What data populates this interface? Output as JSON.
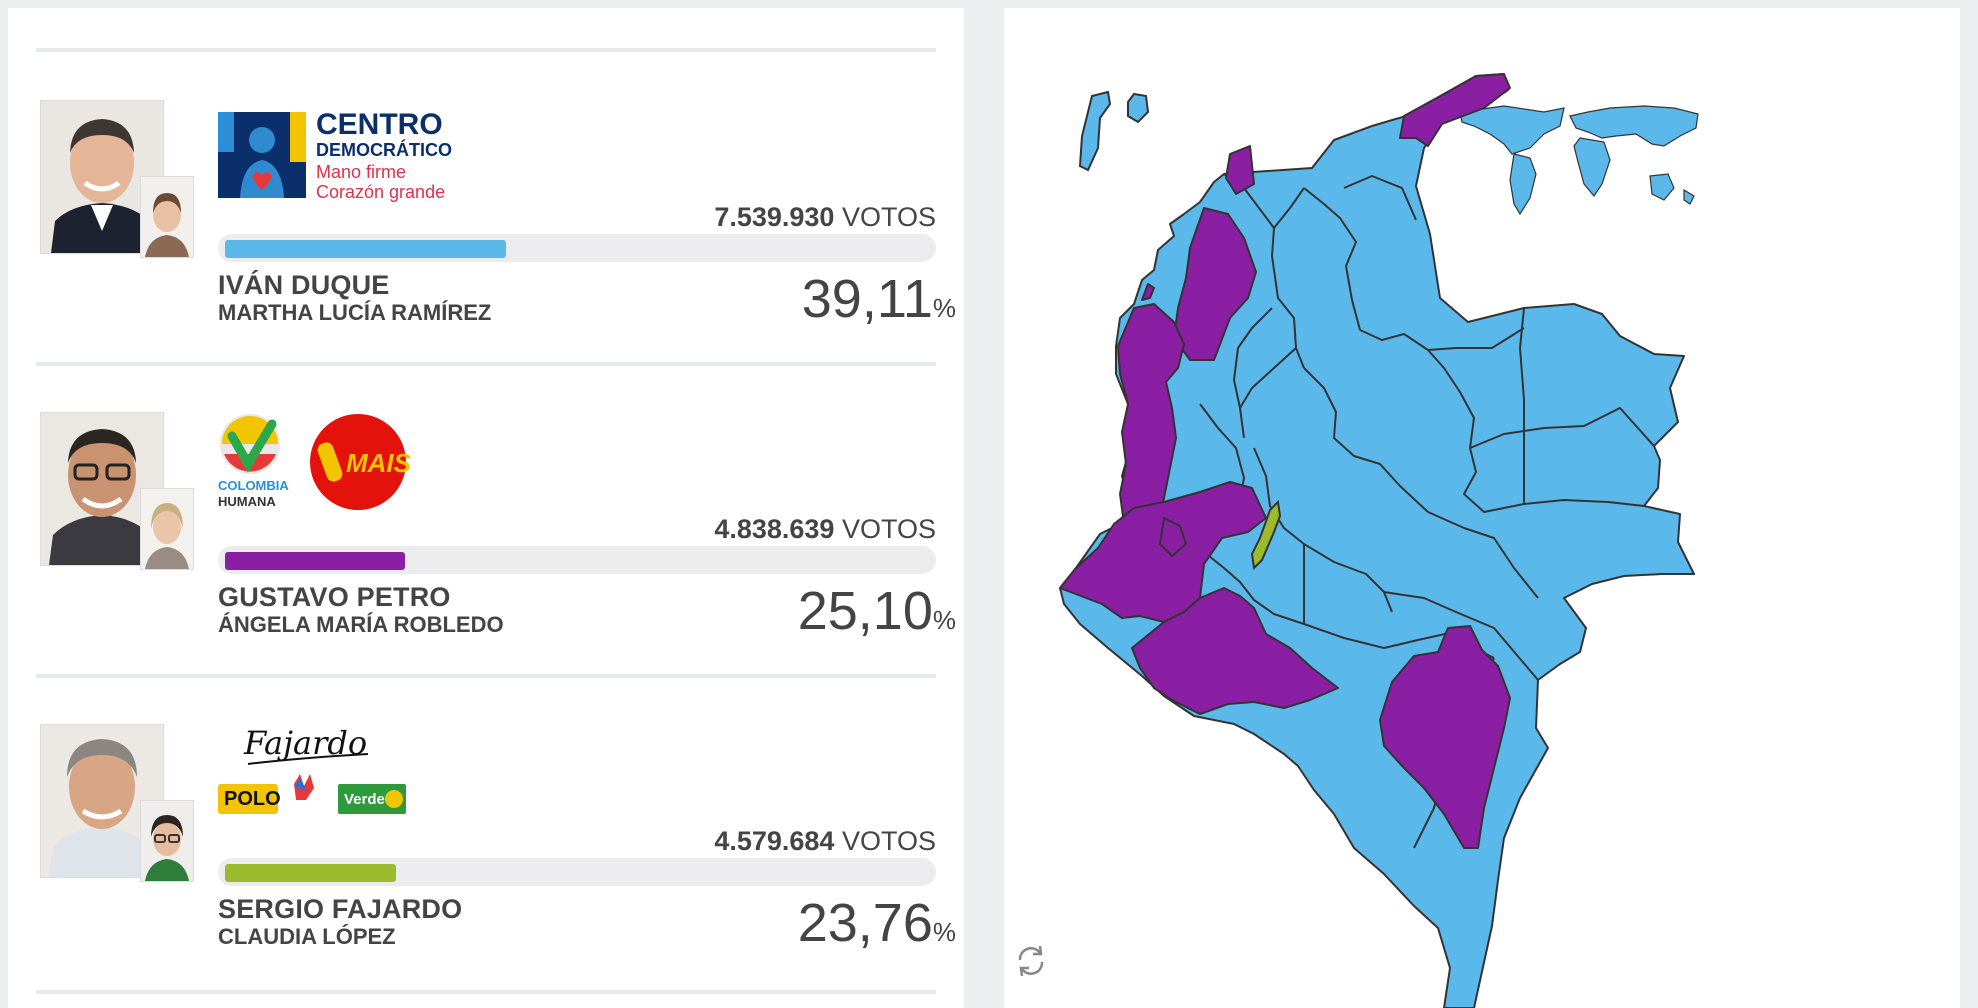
{
  "candidates": [
    {
      "party": {
        "name_line1": "CENTRO",
        "name_line2": "DEMOCRÁTICO",
        "slogan1": "Mano firme",
        "slogan2": "Corazón grande"
      },
      "votes_number": "7.539.930",
      "votes_label": "VOTOS",
      "name": "IVÁN DUQUE",
      "running_mate": "MARTHA LUCÍA RAMÍREZ",
      "percent_value": "39,11",
      "percent_sign": "%",
      "share": 0.3911,
      "color": "#5bb8ea"
    },
    {
      "party": {
        "logo1_line1": "COLOMBIA",
        "logo1_line2": "HUMANA",
        "logo2": "MAIS"
      },
      "votes_number": "4.838.639",
      "votes_label": "VOTOS",
      "name": "GUSTAVO PETRO",
      "running_mate": "ÁNGELA MARÍA ROBLEDO",
      "percent_value": "25,10",
      "percent_sign": "%",
      "share": 0.251,
      "color": "#8b1fa3"
    },
    {
      "party": {
        "signature": "Fajardo",
        "logo1": "POLO",
        "logo3": "Verde"
      },
      "votes_number": "4.579.684",
      "votes_label": "VOTOS",
      "name": "SERGIO FAJARDO",
      "running_mate": "CLAUDIA LÓPEZ",
      "percent_value": "23,76",
      "percent_sign": "%",
      "share": 0.2376,
      "color": "#9cbb2c"
    }
  ],
  "map": {
    "colors": {
      "duque": "#5bb8ea",
      "petro": "#8b1fa3",
      "fajardo": "#9cbb2c",
      "border": "#333333"
    }
  },
  "icons": {
    "refresh": "refresh-icon"
  }
}
